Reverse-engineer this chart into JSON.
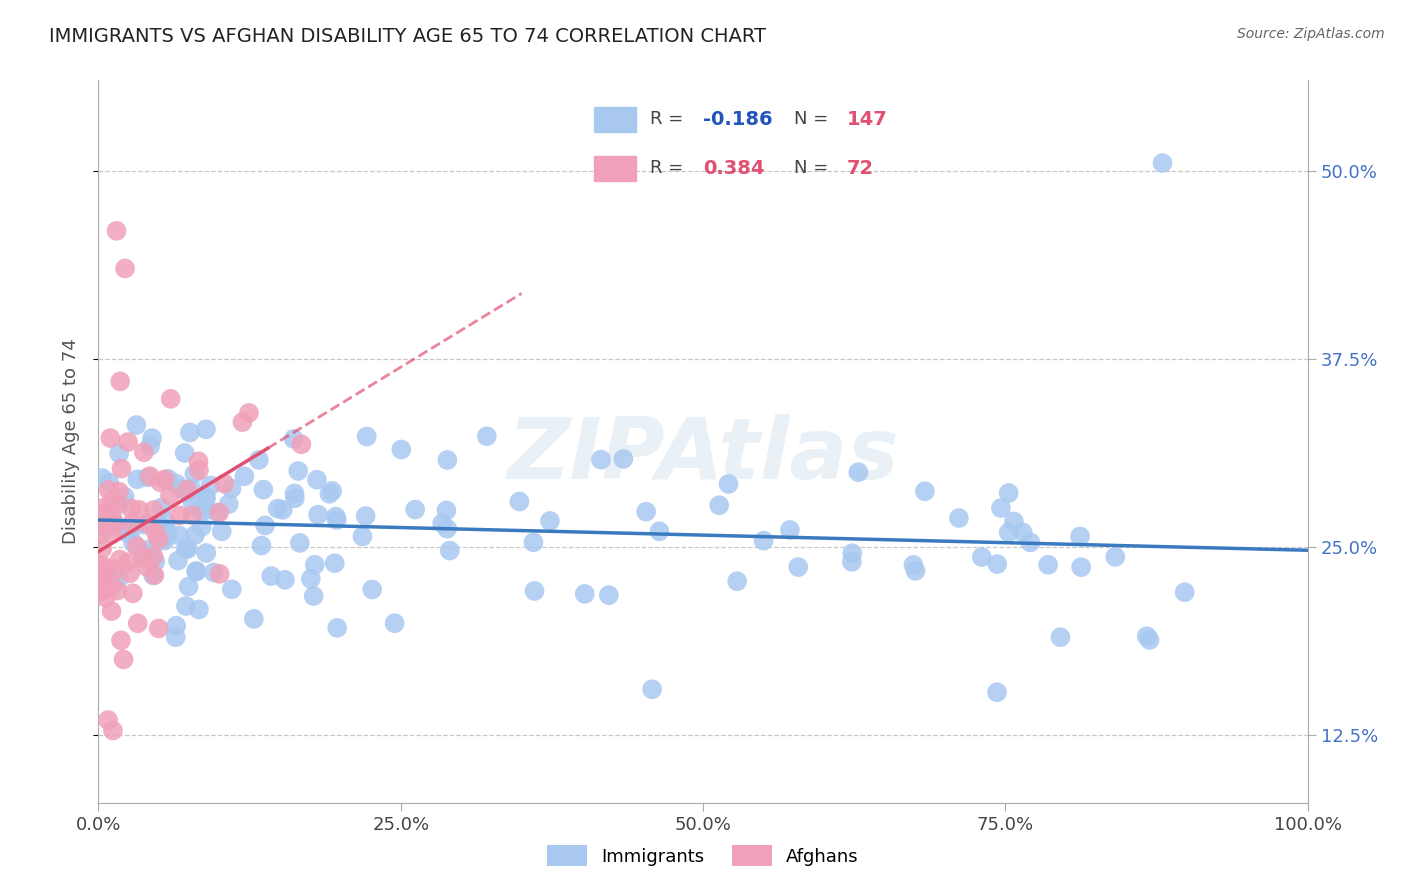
{
  "title": "IMMIGRANTS VS AFGHAN DISABILITY AGE 65 TO 74 CORRELATION CHART",
  "source": "Source: ZipAtlas.com",
  "ylabel": "Disability Age 65 to 74",
  "x_min": 0.0,
  "x_max": 100.0,
  "y_min": 8.0,
  "y_max": 56.0,
  "x_ticks": [
    0.0,
    25.0,
    50.0,
    75.0,
    100.0
  ],
  "x_tick_labels": [
    "0.0%",
    "25.0%",
    "50.0%",
    "75.0%",
    "100.0%"
  ],
  "y_ticks": [
    12.5,
    25.0,
    37.5,
    50.0
  ],
  "y_tick_labels": [
    "12.5%",
    "25.0%",
    "37.5%",
    "50.0%"
  ],
  "immigrants_color": "#a8c8f0",
  "afghans_color": "#f0a0b8",
  "trend_immigrants_color": "#3a7abf",
  "trend_afghans_color": "#e05070",
  "legend_r_immigrants": "-0.186",
  "legend_n_immigrants": "147",
  "legend_r_afghans": "0.384",
  "legend_n_afghans": "72",
  "r_color_negative": "#2255bb",
  "r_color_positive": "#e05070",
  "n_color": "#e05070",
  "background_color": "#ffffff",
  "grid_color": "#c8c8c8",
  "tick_color": "#4472C4",
  "ylabel_color": "#555555"
}
